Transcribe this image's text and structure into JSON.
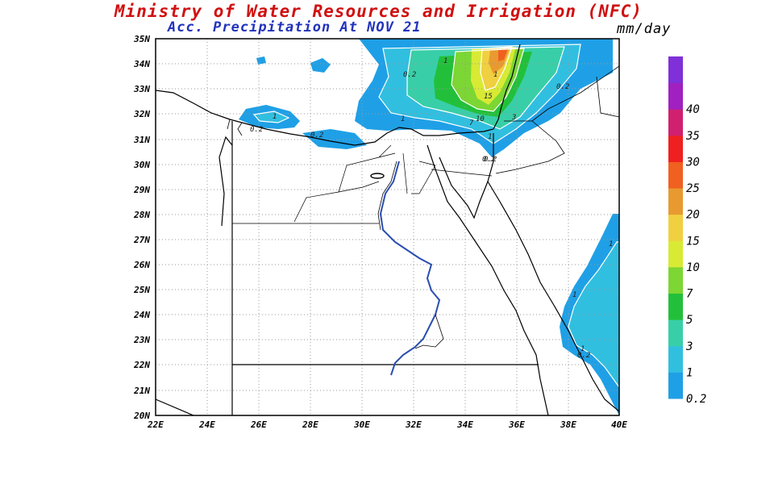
{
  "map": {
    "title": "Ministry of Water Resources and Irrigation (NFC)",
    "subtitle": "Acc. Precipitation  At NOV 21",
    "units": "mm/day",
    "lat_labels": [
      "35N",
      "34N",
      "33N",
      "32N",
      "31N",
      "30N",
      "29N",
      "28N",
      "27N",
      "26N",
      "25N",
      "24N",
      "23N",
      "22N",
      "21N",
      "20N"
    ],
    "lon_labels": [
      "22E",
      "24E",
      "26E",
      "28E",
      "30E",
      "32E",
      "34E",
      "36E",
      "38E",
      "40E"
    ],
    "contour_labels": [
      "0.2",
      "1",
      "0.2",
      "1",
      "0.2",
      "1",
      "1",
      "7",
      "10",
      "15",
      "3",
      "1",
      "0.2",
      "0.2",
      "1",
      "1",
      "0.2",
      "1",
      "0.2"
    ]
  },
  "legend": {
    "levels": [
      "0.2",
      "1",
      "3",
      "5",
      "7",
      "10",
      "15",
      "20",
      "25",
      "30",
      "35",
      "40"
    ],
    "colors": [
      "#1fa0e6",
      "#31bfe0",
      "#38cfa8",
      "#22c03a",
      "#7cd633",
      "#d8ea34",
      "#f0d040",
      "#e89a30",
      "#f06020",
      "#f02020",
      "#d02070",
      "#a020c0",
      "#8030d8"
    ]
  }
}
